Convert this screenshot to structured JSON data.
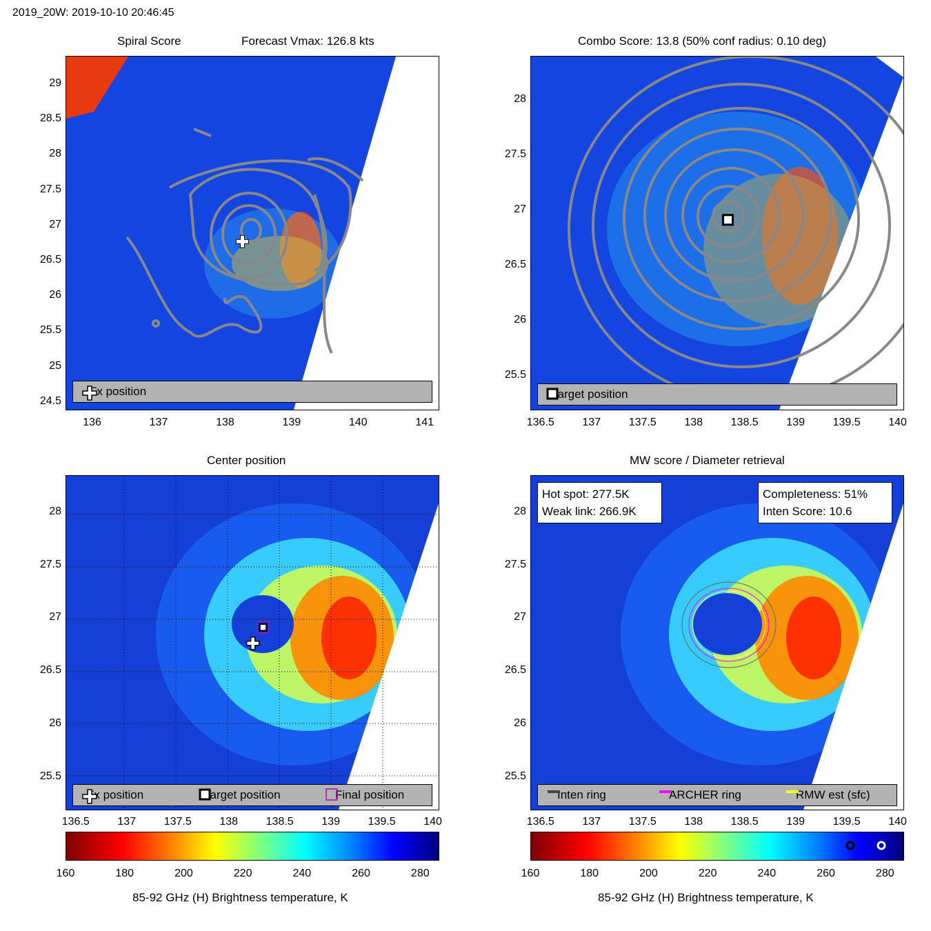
{
  "header": {
    "title": "2019_20W: 2019-10-10 20:46:45"
  },
  "panels": {
    "spiral": {
      "title_left": "Spiral Score",
      "title_right": "Forecast Vmax: 126.8 kts",
      "legend": [
        "Fx position"
      ],
      "xticks": [
        "136",
        "137",
        "138",
        "139",
        "140",
        "141"
      ],
      "yticks": [
        "29",
        "28.5",
        "28",
        "27.5",
        "27",
        "26.5",
        "26",
        "25.5",
        "25",
        "24.5"
      ]
    },
    "combo": {
      "title": "Combo Score: 13.8  (50% conf radius: 0.10 deg)",
      "legend": [
        "Target position"
      ],
      "xticks": [
        "136.5",
        "137",
        "137.5",
        "138",
        "138.5",
        "139",
        "139.5",
        "140"
      ],
      "yticks": [
        "28",
        "27.5",
        "27",
        "26.5",
        "26",
        "25.5"
      ]
    },
    "center": {
      "title": "Center position",
      "legend": [
        "Fx position",
        "Target position",
        "Final position"
      ],
      "xticks": [
        "136.5",
        "137",
        "137.5",
        "138",
        "138.5",
        "139",
        "139.5",
        "140"
      ],
      "yticks": [
        "28",
        "27.5",
        "27",
        "26.5",
        "26",
        "25.5"
      ]
    },
    "mw": {
      "title": "MW score / Diameter retrieval",
      "hotspot": "Hot spot: 277.5K",
      "weaklink": "Weak link: 266.9K",
      "completeness": "Completeness: 51%",
      "inten_score": "Inten Score: 10.6",
      "legend": [
        "Inten ring",
        "ARCHER ring",
        "RMW est (sfc)"
      ],
      "xticks": [
        "136.5",
        "137",
        "137.5",
        "138",
        "138.5",
        "139",
        "139.5",
        "140"
      ],
      "yticks": [
        "28",
        "27.5",
        "27",
        "26.5",
        "26",
        "25.5"
      ]
    }
  },
  "colorbar": {
    "label": "85-92 GHz (H) Brightness temperature, K",
    "ticks": [
      "160",
      "180",
      "200",
      "220",
      "240",
      "260",
      "280"
    ]
  },
  "chart_data": [
    {
      "type": "heatmap",
      "title": "Spiral Score",
      "subtitle": "Forecast Vmax: 126.8 kts",
      "xlim": [
        135.6,
        141.2
      ],
      "ylim": [
        24.4,
        29.4
      ],
      "fx_position": [
        138.25,
        26.78
      ],
      "contour_center": [
        138.3,
        27.0
      ],
      "legend": [
        "Fx position"
      ]
    },
    {
      "type": "heatmap",
      "title": "Combo Score: 13.8  (50% conf radius: 0.10 deg)",
      "xlim": [
        136.4,
        140.05
      ],
      "ylim": [
        25.2,
        28.4
      ],
      "target_position": [
        138.33,
        26.92
      ],
      "legend": [
        "Target position"
      ]
    },
    {
      "type": "heatmap",
      "title": "Center position",
      "xlim": [
        136.4,
        140.05
      ],
      "ylim": [
        25.2,
        28.35
      ],
      "fx_position": [
        138.23,
        26.77
      ],
      "target_position": [
        138.33,
        26.92
      ],
      "final_position": [
        138.33,
        26.92
      ],
      "legend": [
        "Fx position",
        "Target position",
        "Final position"
      ]
    },
    {
      "type": "heatmap",
      "title": "MW score / Diameter retrieval",
      "xlim": [
        136.4,
        140.05
      ],
      "ylim": [
        25.2,
        28.35
      ],
      "eye_center": [
        138.35,
        26.92
      ],
      "hot_spot_K": 277.5,
      "weak_link_K": 266.9,
      "completeness_pct": 51,
      "inten_score": 10.6,
      "legend": [
        "Inten ring",
        "ARCHER ring",
        "RMW est (sfc)"
      ]
    }
  ],
  "colors": {
    "cold": "#8b0000",
    "mid": "#ffff00",
    "warm": "#000080",
    "contour": "#808080"
  }
}
